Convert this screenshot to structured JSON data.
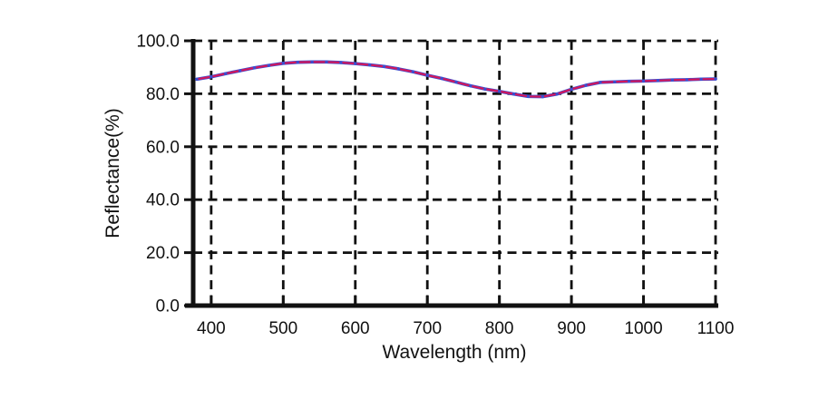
{
  "figure": {
    "background": "#ffffff"
  },
  "colors": {
    "axis": "#111111",
    "grid": "#111111",
    "text": "#111111",
    "trace_blue": "#3c4ecf",
    "trace_red": "#d2175c",
    "background": "#ffffff"
  },
  "chart_data": {
    "type": "line",
    "title": "",
    "xlabel": "Wavelength (nm)",
    "ylabel": "Reflectance(%)",
    "xlim": [
      375,
      1100
    ],
    "ylim": [
      0,
      100
    ],
    "x_ticks": [
      400,
      500,
      600,
      700,
      800,
      900,
      1000,
      1100
    ],
    "x_tick_labels": [
      "400",
      "500",
      "600",
      "700",
      "800",
      "900",
      "1000",
      "1100"
    ],
    "y_ticks": [
      0,
      20,
      40,
      60,
      80,
      100
    ],
    "y_tick_labels": [
      "0.0",
      "20.0",
      "40.0",
      "60.0",
      "80.0",
      "100.0"
    ],
    "grid": "on",
    "grid_style": "dashed",
    "legend": "none",
    "x": [
      380,
      400,
      420,
      440,
      460,
      480,
      500,
      520,
      540,
      560,
      580,
      600,
      620,
      640,
      660,
      680,
      700,
      720,
      740,
      760,
      780,
      800,
      820,
      840,
      860,
      880,
      900,
      920,
      940,
      960,
      980,
      1000,
      1020,
      1040,
      1060,
      1080,
      1100
    ],
    "series": [
      {
        "name": "reflectance-trace-blue",
        "color": "#3c4ecf",
        "values": [
          85.5,
          86.4,
          87.6,
          88.7,
          89.8,
          90.7,
          91.5,
          91.9,
          92.0,
          92.0,
          91.8,
          91.4,
          90.9,
          90.3,
          89.4,
          88.3,
          87.0,
          85.8,
          84.4,
          83.0,
          81.8,
          80.9,
          79.9,
          79.0,
          78.9,
          79.9,
          81.7,
          83.2,
          84.3,
          84.5,
          84.7,
          84.8,
          85.0,
          85.2,
          85.3,
          85.5,
          85.6
        ]
      },
      {
        "name": "reflectance-trace-red",
        "color": "#d2175c",
        "values": [
          85.5,
          86.4,
          87.6,
          88.7,
          89.8,
          90.7,
          91.5,
          91.9,
          92.0,
          92.0,
          91.8,
          91.4,
          90.9,
          90.3,
          89.4,
          88.3,
          87.0,
          85.8,
          84.4,
          83.0,
          81.8,
          80.9,
          79.9,
          79.0,
          78.9,
          79.9,
          81.7,
          83.2,
          84.3,
          84.5,
          84.7,
          84.8,
          85.0,
          85.2,
          85.3,
          85.5,
          85.6
        ]
      }
    ]
  }
}
